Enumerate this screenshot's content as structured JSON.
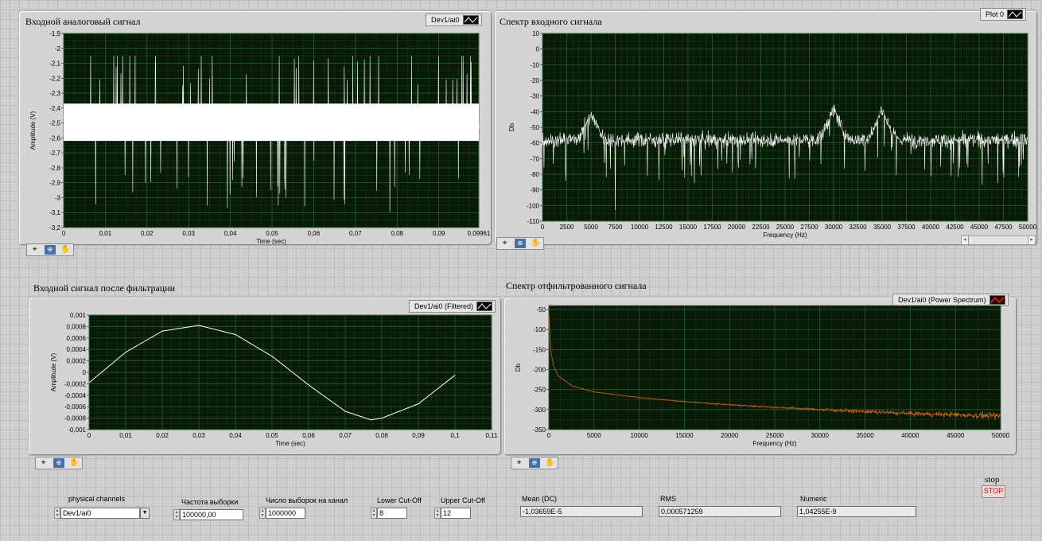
{
  "charts": {
    "input": {
      "title": "Входной аналоговый сигнал",
      "legend": "Dev1/ai0",
      "ylabel": "Amplitude (V)",
      "xlabel": "Time (sec)",
      "trace_color": "#ffffff"
    },
    "input_spectrum": {
      "title": "Спектр  входного сигнала",
      "legend": "Plot 0",
      "ylabel": "Db",
      "xlabel": "Frequency (Hz)",
      "trace_color": "#ffffff"
    },
    "filtered": {
      "title": "Входной сигнал после фильтрации",
      "legend": "Dev1/ai0 (Filtered)",
      "ylabel": "Amplitude (V)",
      "xlabel": "Time (sec)",
      "trace_color": "#ffffff"
    },
    "filtered_spectrum": {
      "title": "Спектр  отфильтрованного сигнала",
      "legend": "Dev1/ai0 (Power Spectrum)",
      "ylabel": "Db",
      "xlabel": "Frequency (Hz)",
      "trace_color": "#d9641e"
    }
  },
  "chart_data": [
    {
      "type": "line",
      "title": "",
      "xlabel": "Time (sec)",
      "ylabel": "Amplitude (V)",
      "xlim": [
        0,
        0.09961
      ],
      "ylim": [
        -3.2,
        -1.9
      ],
      "x_ticks": [
        "0",
        "0,01",
        "0,02",
        "0,03",
        "0,04",
        "0,05",
        "0,06",
        "0,07",
        "0,08",
        "0,09",
        "0,09961"
      ],
      "x_tick_values": [
        0,
        0.01,
        0.02,
        0.03,
        0.04,
        0.05,
        0.06,
        0.07,
        0.08,
        0.09,
        0.09961
      ],
      "y_ticks": [
        "-1,9",
        "-2",
        "-2,1",
        "-2,2",
        "-2,3",
        "-2,4",
        "-2,5",
        "-2,6",
        "-2,7",
        "-2,8",
        "-2,9",
        "-3",
        "-3,1",
        "-3,2"
      ],
      "y_tick_values": [
        -1.9,
        -2.0,
        -2.1,
        -2.2,
        -2.3,
        -2.4,
        -2.5,
        -2.6,
        -2.7,
        -2.8,
        -2.9,
        -3.0,
        -3.1,
        -3.2
      ],
      "series": [
        {
          "name": "Dev1/ai0",
          "kind": "noise",
          "center": -2.5,
          "band": [
            -2.62,
            -2.37
          ],
          "extremes": [
            -3.1,
            -2.05
          ]
        }
      ],
      "grid": true
    },
    {
      "type": "line",
      "title": "",
      "xlabel": "Frequency (Hz)",
      "ylabel": "Db",
      "xlim": [
        0,
        50000
      ],
      "ylim": [
        -110,
        10
      ],
      "x_ticks": [
        "0",
        "2500",
        "5000",
        "7500",
        "10000",
        "12500",
        "15000",
        "17500",
        "20000",
        "22500",
        "25000",
        "27500",
        "30000",
        "32500",
        "35000",
        "37500",
        "40000",
        "42500",
        "45000",
        "47500",
        "50000"
      ],
      "x_tick_values": [
        0,
        2500,
        5000,
        7500,
        10000,
        12500,
        15000,
        17500,
        20000,
        22500,
        25000,
        27500,
        30000,
        32500,
        35000,
        37500,
        40000,
        42500,
        45000,
        47500,
        50000
      ],
      "y_ticks": [
        "10",
        "0",
        "-10",
        "-20",
        "-30",
        "-40",
        "-50",
        "-60",
        "-70",
        "-80",
        "-90",
        "-100",
        "-110"
      ],
      "y_tick_values": [
        10,
        0,
        -10,
        -20,
        -30,
        -40,
        -50,
        -60,
        -70,
        -80,
        -90,
        -100,
        -110
      ],
      "series": [
        {
          "name": "Plot 0",
          "kind": "noise",
          "center": -58,
          "spread": 6,
          "peaks": [
            [
              5000,
              -43
            ],
            [
              7500,
              -103
            ],
            [
              30000,
              -40
            ],
            [
              35000,
              -40
            ]
          ]
        }
      ],
      "grid": true
    },
    {
      "type": "line",
      "title": "",
      "xlabel": "Time (sec)",
      "ylabel": "Amplitude (V)",
      "xlim": [
        0,
        0.11
      ],
      "ylim": [
        -0.001,
        0.001
      ],
      "x_ticks": [
        "0",
        "0,01",
        "0,02",
        "0,03",
        "0,04",
        "0,05",
        "0,06",
        "0,07",
        "0,08",
        "0,09",
        "0,1",
        "0,11"
      ],
      "x_tick_values": [
        0,
        0.01,
        0.02,
        0.03,
        0.04,
        0.05,
        0.06,
        0.07,
        0.08,
        0.09,
        0.1,
        0.11
      ],
      "y_ticks": [
        "0,001",
        "0,0008",
        "0,0006",
        "0,0004",
        "0,0002",
        "0",
        "-0,0002",
        "-0,0004",
        "-0,0006",
        "-0,0008",
        "-0,001"
      ],
      "y_tick_values": [
        0.001,
        0.0008,
        0.0006,
        0.0004,
        0.0002,
        0,
        -0.0002,
        -0.0004,
        -0.0006,
        -0.0008,
        -0.001
      ],
      "series": [
        {
          "name": "Dev1/ai0 (Filtered)",
          "x": [
            0,
            0.01,
            0.02,
            0.03,
            0.04,
            0.05,
            0.06,
            0.07,
            0.077,
            0.08,
            0.09,
            0.1
          ],
          "y": [
            -0.00018,
            0.00035,
            0.00072,
            0.00082,
            0.00066,
            0.00028,
            -0.00022,
            -0.00068,
            -0.00083,
            -0.0008,
            -0.00055,
            -5e-05
          ]
        }
      ],
      "grid": true
    },
    {
      "type": "line",
      "title": "",
      "xlabel": "Frequency (Hz)",
      "ylabel": "Db",
      "xlim": [
        0,
        50000
      ],
      "ylim": [
        -350,
        -40
      ],
      "x_ticks": [
        "0",
        "5000",
        "10000",
        "15000",
        "20000",
        "25000",
        "30000",
        "35000",
        "40000",
        "45000",
        "50000"
      ],
      "x_tick_values": [
        0,
        5000,
        10000,
        15000,
        20000,
        25000,
        30000,
        35000,
        40000,
        45000,
        50000
      ],
      "y_ticks": [
        "-50",
        "-100",
        "-150",
        "-200",
        "-250",
        "-300",
        "-350"
      ],
      "y_tick_values": [
        -50,
        -100,
        -150,
        -200,
        -250,
        -300,
        -350
      ],
      "series": [
        {
          "name": "Dev1/ai0 (Power Spectrum)",
          "x": [
            10,
            200,
            500,
            1000,
            2500,
            5000,
            10000,
            15000,
            20000,
            25000,
            30000,
            35000,
            40000,
            45000,
            50000
          ],
          "y": [
            -60,
            -150,
            -190,
            -215,
            -240,
            -256,
            -270,
            -280,
            -288,
            -294,
            -300,
            -305,
            -310,
            -313,
            -316
          ]
        }
      ],
      "grid": true
    }
  ],
  "controls": {
    "physical_channels": {
      "label": "physical channels",
      "value": "Dev1/ai0"
    },
    "sample_rate": {
      "label": "Частота выборки",
      "value": "100000,00"
    },
    "samples_per_channel": {
      "label": "Число выборок на канал",
      "value": "1000000"
    },
    "lower_cutoff": {
      "label": "Lower Cut-Off",
      "value": "8"
    },
    "upper_cutoff": {
      "label": "Upper Cut-Off",
      "value": "12"
    },
    "mean_dc": {
      "label": "Mean (DC)",
      "value": "-1,03659E-5"
    },
    "rms": {
      "label": "RMS",
      "value": "0,000571259"
    },
    "numeric": {
      "label": "Numeric",
      "value": "1,04255E-9"
    },
    "stop": {
      "label": "stop",
      "button": "STOP"
    }
  },
  "icons": [
    "crosshair-icon",
    "zoom-icon",
    "hand-pan-icon",
    "plot-legend-swatch-icon",
    "spin-arrows-icon",
    "dropdown-arrow-icon"
  ]
}
